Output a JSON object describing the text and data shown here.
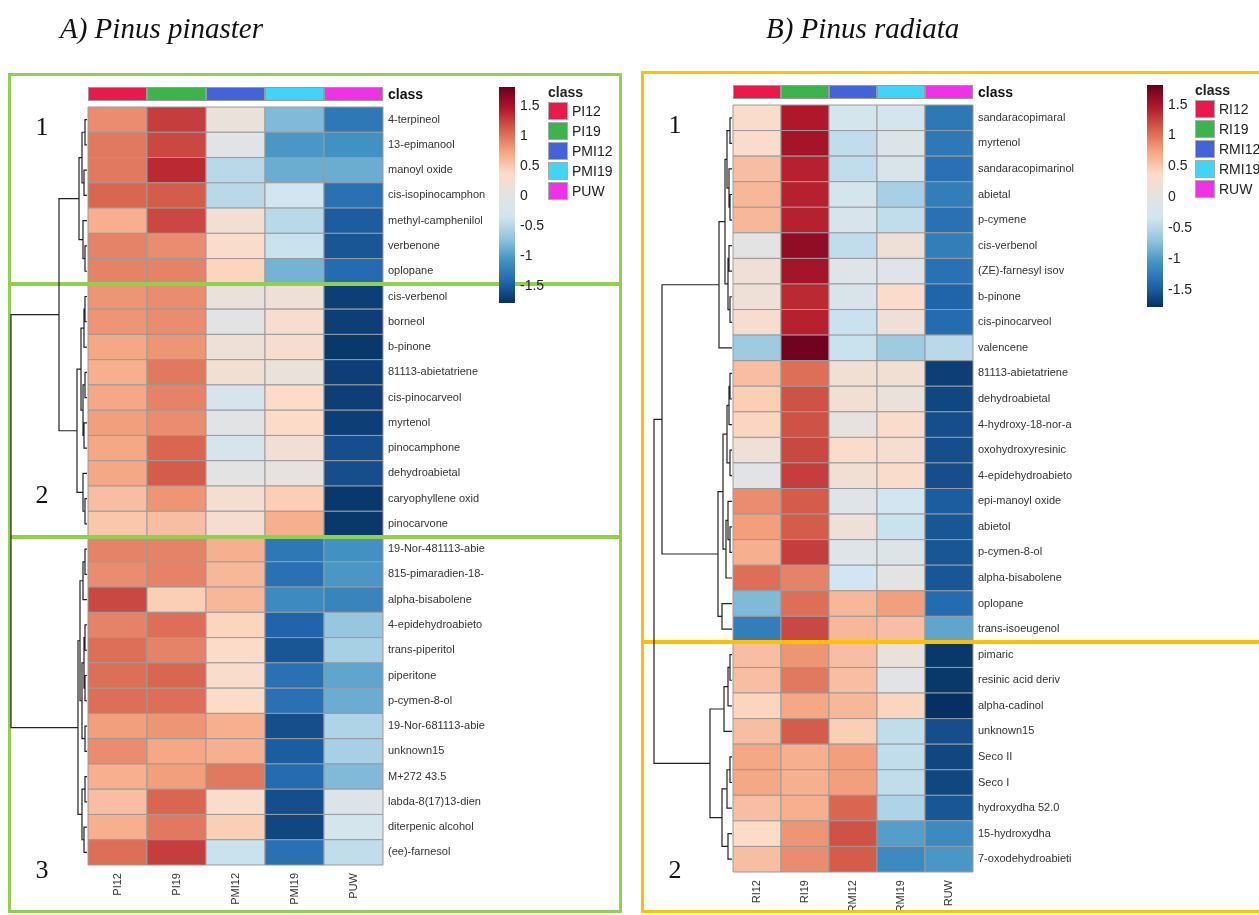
{
  "chart_data": [
    {
      "type": "heatmap",
      "title": "A) Pinus pinaster",
      "categories": [
        "PI12",
        "PI19",
        "PMI12",
        "PMI19",
        "PUW"
      ],
      "y_categories": [
        "4-terpineol",
        "13-epimanool",
        "manoyl oxide",
        "cis-isopinocamphon",
        "methyl-camphenilol",
        "verbenone",
        "oplopane",
        "cis-verbenol",
        "borneol",
        "b-pinone",
        "81113-abietatriene",
        "cis-pinocarveol",
        "myrtenol",
        "pinocamphone",
        "dehydroabietal",
        "caryophyllene oxid",
        "pinocarvone",
        "19-Nor-481113-abie",
        "815-pimaradien-18-",
        "alpha-bisabolene",
        "4-epidehydroabieto",
        "trans-piperitol",
        "piperitone",
        "p-cymen-8-ol",
        "19-Nor-681113-abie",
        "unknown15",
        "M+272 43.5",
        "labda-8(17)13-dien",
        "diterpenic alcohol",
        "(ee)-farnesol"
      ],
      "cells": [
        [
          0.85,
          1.25,
          0.1,
          -0.8,
          -1.3
        ],
        [
          0.95,
          1.2,
          -0.05,
          -1.05,
          -1.1
        ],
        [
          0.95,
          1.35,
          -0.5,
          -0.9,
          -0.9
        ],
        [
          1.05,
          1.1,
          -0.5,
          -0.35,
          -1.35
        ],
        [
          0.65,
          1.2,
          0.2,
          -0.5,
          -1.5
        ],
        [
          0.9,
          0.85,
          0.3,
          -0.4,
          -1.55
        ],
        [
          0.9,
          0.9,
          0.4,
          -0.85,
          -1.4
        ],
        [
          0.8,
          0.85,
          0.1,
          0.15,
          -1.7
        ],
        [
          0.8,
          0.85,
          0.0,
          0.25,
          -1.7
        ],
        [
          0.7,
          0.8,
          0.15,
          0.25,
          -1.75
        ],
        [
          0.65,
          0.95,
          0.2,
          0.1,
          -1.7
        ],
        [
          0.7,
          0.9,
          -0.25,
          0.35,
          -1.7
        ],
        [
          0.75,
          0.85,
          -0.05,
          0.35,
          -1.7
        ],
        [
          0.7,
          1.05,
          -0.25,
          0.2,
          -1.6
        ],
        [
          0.7,
          1.1,
          0.0,
          0.05,
          -1.6
        ],
        [
          0.55,
          0.8,
          0.25,
          0.45,
          -1.75
        ],
        [
          0.5,
          0.55,
          0.25,
          0.65,
          -1.75
        ],
        [
          0.9,
          0.9,
          0.65,
          -1.3,
          -1.1
        ],
        [
          0.85,
          0.9,
          0.6,
          -1.35,
          -1.05
        ],
        [
          1.2,
          0.45,
          0.6,
          -1.15,
          -1.2
        ],
        [
          0.9,
          1.0,
          0.4,
          -1.45,
          -0.7
        ],
        [
          1.0,
          0.9,
          0.35,
          -1.55,
          -0.6
        ],
        [
          1.0,
          1.05,
          0.3,
          -1.35,
          -0.95
        ],
        [
          1.0,
          1.0,
          0.35,
          -1.35,
          -0.9
        ],
        [
          0.75,
          0.8,
          0.65,
          -1.6,
          -0.55
        ],
        [
          0.85,
          0.7,
          0.65,
          -1.5,
          -0.6
        ],
        [
          0.65,
          0.75,
          0.95,
          -1.4,
          -0.8
        ],
        [
          0.55,
          1.05,
          0.3,
          -1.6,
          -0.15
        ],
        [
          0.65,
          0.95,
          0.45,
          -1.65,
          -0.3
        ],
        [
          1.0,
          1.25,
          -0.4,
          -1.35,
          -0.45
        ]
      ],
      "clim": [
        -1.8,
        1.8
      ],
      "cticks": [
        1.5,
        1,
        0.5,
        0,
        -0.5,
        -1,
        -1.5
      ],
      "colors": [
        "#e8194b",
        "#3cb44b",
        "#4363d8",
        "#42d4f4",
        "#f032e6"
      ],
      "legend_title": "class",
      "annotations": [
        "class",
        "1",
        "2",
        "3"
      ]
    },
    {
      "type": "heatmap",
      "title": "B) Pinus radiata",
      "categories": [
        "RI12",
        "RI19",
        "RMI12",
        "RMI19",
        "RUW"
      ],
      "y_categories": [
        "sandaracopimaral",
        "myrtenol",
        "sandaracopimarinol",
        "abietal",
        "p-cymene",
        "cis-verbenol",
        "(ZE)-farnesyl isov",
        "b-pinone",
        "cis-pinocarveol",
        "valencene",
        "81113-abietatriene",
        "dehydroabietal",
        "4-hydroxy-18-nor-a",
        "oxohydroxyresinic",
        "4-epidehydroabieto",
        "epi-manoyl oxide",
        "abietol",
        "p-cymen-8-ol",
        "alpha-bisabolene",
        "oplopane",
        "trans-isoeugenol",
        "pimaric",
        "resinic acid deriv",
        "alpha-cadinol",
        "unknown15",
        "Seco II",
        "Seco I",
        "hydroxydha 52.0",
        "15-hydroxydha",
        "7-oxodehydroabieti"
      ],
      "cells": [
        [
          0.3,
          1.45,
          -0.3,
          -0.3,
          -1.3
        ],
        [
          0.3,
          1.5,
          -0.45,
          -0.15,
          -1.3
        ],
        [
          0.55,
          1.4,
          -0.45,
          -0.2,
          -1.35
        ],
        [
          0.6,
          1.4,
          -0.3,
          -0.6,
          -1.25
        ],
        [
          0.6,
          1.4,
          -0.25,
          -0.45,
          -1.35
        ],
        [
          0.0,
          1.6,
          -0.45,
          0.15,
          -1.25
        ],
        [
          0.15,
          1.5,
          -0.1,
          -0.1,
          -1.35
        ],
        [
          0.15,
          1.35,
          -0.2,
          0.3,
          -1.45
        ],
        [
          0.25,
          1.4,
          -0.4,
          0.15,
          -1.4
        ],
        [
          -0.65,
          1.75,
          -0.4,
          -0.65,
          -0.5
        ],
        [
          0.55,
          1.0,
          0.2,
          0.2,
          -1.7
        ],
        [
          0.45,
          1.15,
          0.2,
          0.1,
          -1.65
        ],
        [
          0.4,
          1.15,
          0.05,
          0.3,
          -1.6
        ],
        [
          0.15,
          1.2,
          0.3,
          0.25,
          -1.6
        ],
        [
          -0.05,
          1.25,
          0.2,
          0.3,
          -1.6
        ],
        [
          0.85,
          1.1,
          -0.1,
          -0.35,
          -1.5
        ],
        [
          0.75,
          1.1,
          0.15,
          -0.4,
          -1.55
        ],
        [
          0.65,
          1.25,
          -0.1,
          -0.15,
          -1.55
        ],
        [
          1.0,
          0.9,
          -0.35,
          0.0,
          -1.55
        ],
        [
          -0.8,
          1.0,
          0.6,
          0.75,
          -1.4
        ],
        [
          -1.25,
          1.2,
          0.6,
          0.55,
          -0.95
        ],
        [
          0.55,
          0.8,
          0.55,
          0.1,
          -1.75
        ],
        [
          0.55,
          0.95,
          0.55,
          -0.05,
          -1.75
        ],
        [
          0.4,
          0.7,
          0.6,
          0.4,
          -1.8
        ],
        [
          0.55,
          1.1,
          0.45,
          -0.45,
          -1.6
        ],
        [
          0.7,
          0.65,
          0.75,
          -0.45,
          -1.65
        ],
        [
          0.7,
          0.65,
          0.75,
          -0.45,
          -1.65
        ],
        [
          0.55,
          0.65,
          1.05,
          -0.55,
          -1.55
        ],
        [
          0.35,
          0.8,
          1.15,
          -1.0,
          -1.15
        ],
        [
          0.55,
          0.85,
          1.1,
          -1.15,
          -1.05
        ]
      ],
      "clim": [
        -1.8,
        1.8
      ],
      "cticks": [
        1.5,
        1,
        0.5,
        0,
        -0.5,
        -1,
        -1.5
      ],
      "colors": [
        "#e8194b",
        "#3cb44b",
        "#4363d8",
        "#42d4f4",
        "#f032e6"
      ],
      "legend_title": "class",
      "annotations": [
        "class",
        "1",
        "2"
      ]
    }
  ]
}
